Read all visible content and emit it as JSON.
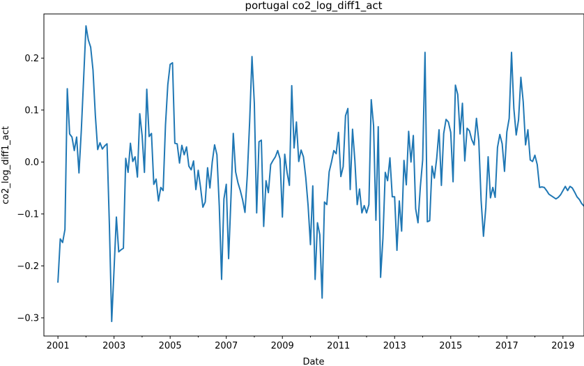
{
  "chart_data": {
    "type": "line",
    "title": "portugal co2_log_diff1_act",
    "xlabel": "Date",
    "ylabel": "co2_log_diff1_act",
    "xlim": [
      "2000-07-01",
      "2019-10-01"
    ],
    "ylim": [
      -0.335,
      0.285
    ],
    "x_ticks": [
      "2001",
      "2003",
      "2005",
      "2007",
      "2009",
      "2011",
      "2013",
      "2015",
      "2017",
      "2019"
    ],
    "y_ticks": [
      -0.3,
      -0.2,
      -0.1,
      0.0,
      0.1,
      0.2
    ],
    "y_tick_labels": [
      "−0.3",
      "−0.2",
      "−0.1",
      "0.0",
      "0.1",
      "0.2"
    ],
    "grid": false,
    "line_color": "#1f77b4",
    "series": [
      {
        "start": "2001-01",
        "frequency": "monthly",
        "values": [
          -0.231,
          -0.148,
          -0.155,
          -0.13,
          0.141,
          0.054,
          0.048,
          0.022,
          0.048,
          -0.021,
          0.061,
          0.161,
          0.262,
          0.235,
          0.221,
          0.177,
          0.09,
          0.024,
          0.037,
          0.025,
          0.031,
          0.035,
          -0.12,
          -0.307,
          -0.207,
          -0.106,
          -0.173,
          -0.169,
          -0.166,
          0.007,
          -0.02,
          0.036,
          0.001,
          0.01,
          -0.029,
          0.093,
          0.051,
          -0.02,
          0.14,
          0.049,
          0.055,
          -0.043,
          -0.033,
          -0.075,
          -0.049,
          -0.055,
          0.071,
          0.149,
          0.188,
          0.191,
          0.036,
          0.035,
          -0.002,
          0.032,
          0.014,
          0.029,
          -0.008,
          -0.015,
          0.002,
          -0.053,
          -0.016,
          -0.049,
          -0.087,
          -0.077,
          -0.011,
          -0.05,
          0.0,
          0.033,
          0.014,
          -0.084,
          -0.226,
          -0.071,
          -0.043,
          -0.186,
          -0.07,
          0.055,
          -0.019,
          -0.04,
          -0.055,
          -0.073,
          -0.097,
          -0.025,
          0.078,
          0.203,
          0.113,
          -0.098,
          0.039,
          0.042,
          -0.124,
          -0.036,
          -0.059,
          -0.005,
          0.003,
          0.01,
          0.022,
          0.006,
          -0.106,
          0.015,
          -0.02,
          -0.045,
          0.147,
          0.027,
          0.077,
          0.001,
          0.023,
          0.01,
          -0.03,
          -0.084,
          -0.159,
          -0.046,
          -0.226,
          -0.117,
          -0.14,
          -0.262,
          -0.077,
          -0.082,
          -0.019,
          0.0,
          0.022,
          0.016,
          0.057,
          -0.028,
          -0.009,
          0.089,
          0.103,
          -0.053,
          0.063,
          0.003,
          -0.082,
          -0.052,
          -0.098,
          -0.084,
          -0.098,
          -0.082,
          0.12,
          0.07,
          -0.112,
          0.068,
          -0.222,
          -0.147,
          -0.02,
          -0.036,
          0.008,
          -0.067,
          -0.067,
          -0.17,
          -0.075,
          -0.133,
          0.003,
          -0.044,
          0.059,
          0.0,
          0.051,
          -0.09,
          -0.117,
          -0.048,
          0.004,
          0.211,
          -0.115,
          -0.113,
          -0.008,
          -0.031,
          0.007,
          0.062,
          -0.045,
          0.055,
          0.082,
          0.077,
          0.057,
          -0.038,
          0.148,
          0.13,
          0.054,
          0.113,
          0.002,
          0.065,
          0.06,
          0.043,
          0.033,
          0.084,
          0.041,
          -0.074,
          -0.143,
          -0.088,
          0.01,
          -0.069,
          -0.049,
          -0.068,
          0.028,
          0.053,
          0.035,
          -0.018,
          0.058,
          0.084,
          0.211,
          0.103,
          0.052,
          0.081,
          0.163,
          0.116,
          0.033,
          0.062,
          0.004,
          0.001,
          0.013,
          -0.005,
          -0.049,
          -0.048,
          -0.049,
          -0.055,
          -0.062,
          -0.065,
          -0.068,
          -0.071,
          -0.068,
          -0.063,
          -0.055,
          -0.047,
          -0.055,
          -0.047,
          -0.05,
          -0.058,
          -0.067,
          -0.072,
          -0.08,
          -0.085,
          -0.073,
          -0.063
        ]
      }
    ]
  }
}
